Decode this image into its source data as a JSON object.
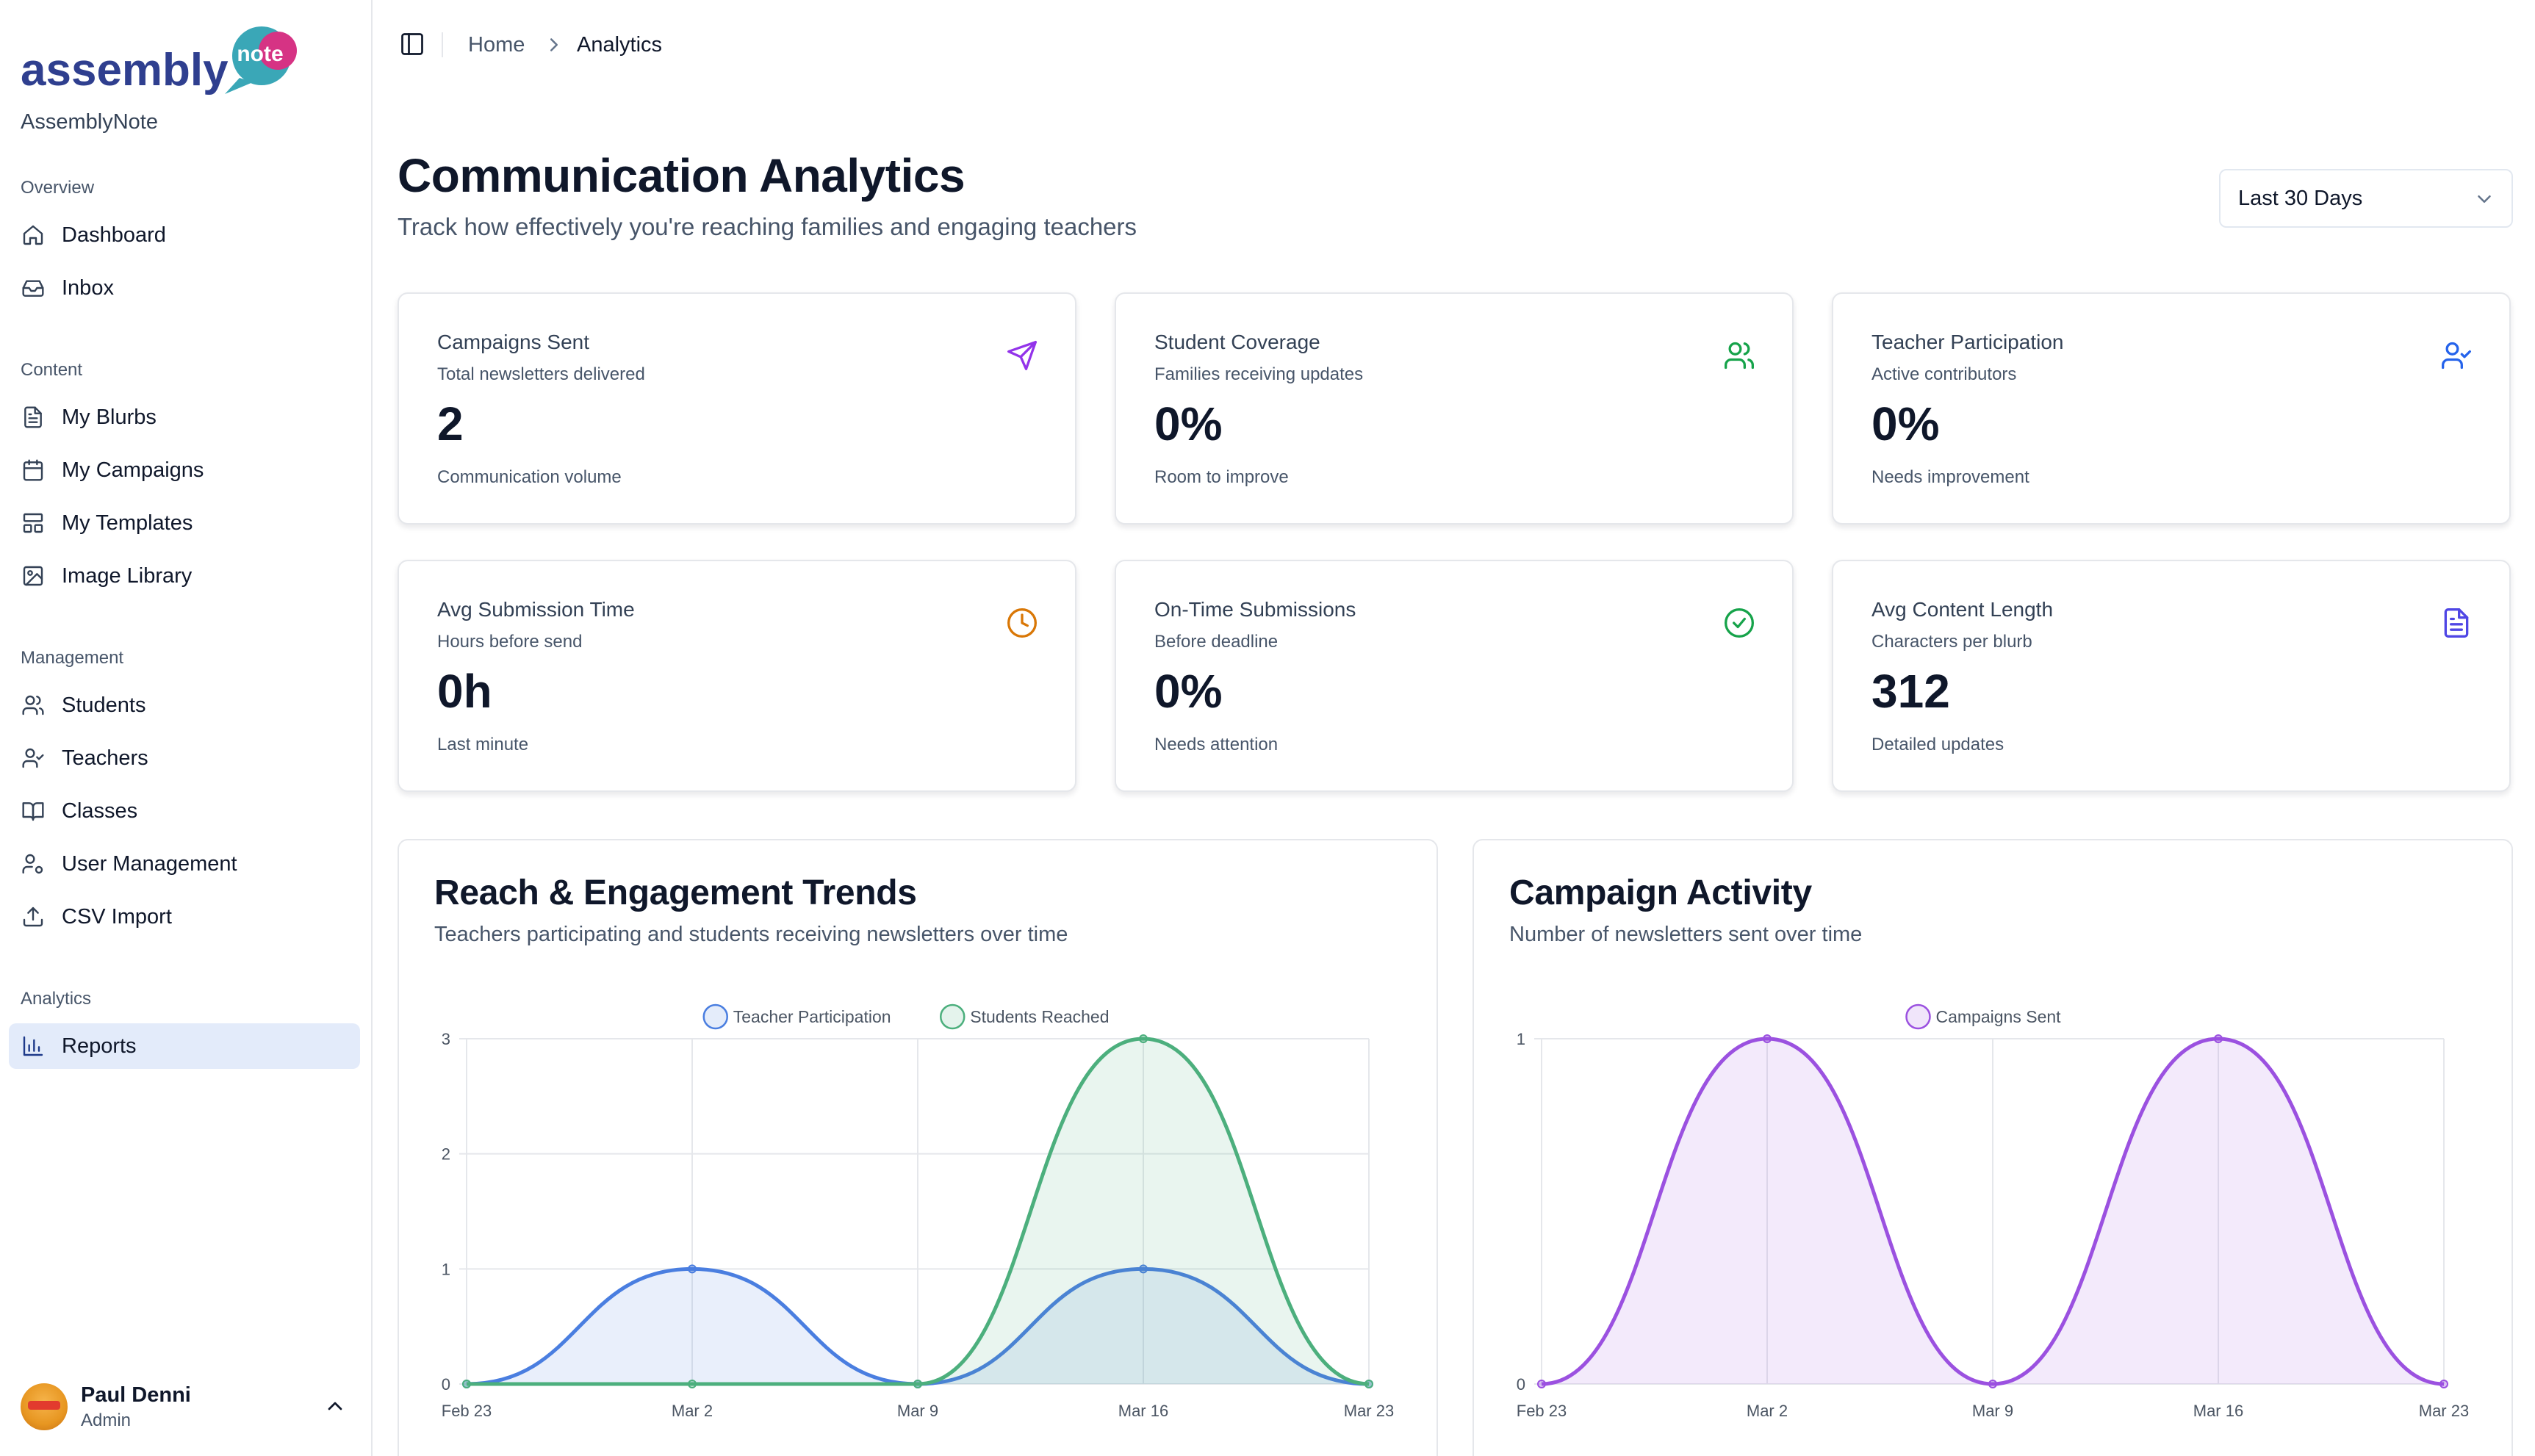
{
  "app": {
    "logo_text_main": "assembly",
    "logo_text_bubble": "note",
    "name": "AssemblyNote"
  },
  "sidebar": {
    "groups": [
      {
        "label": "Overview",
        "items": [
          {
            "label": "Dashboard",
            "icon": "home-icon"
          },
          {
            "label": "Inbox",
            "icon": "inbox-icon"
          }
        ]
      },
      {
        "label": "Content",
        "items": [
          {
            "label": "My Blurbs",
            "icon": "document-icon"
          },
          {
            "label": "My Campaigns",
            "icon": "calendar-icon"
          },
          {
            "label": "My Templates",
            "icon": "layout-icon"
          },
          {
            "label": "Image Library",
            "icon": "image-icon"
          }
        ]
      },
      {
        "label": "Management",
        "items": [
          {
            "label": "Students",
            "icon": "users-icon"
          },
          {
            "label": "Teachers",
            "icon": "user-check-icon"
          },
          {
            "label": "Classes",
            "icon": "book-open-icon"
          },
          {
            "label": "User Management",
            "icon": "user-cog-icon"
          },
          {
            "label": "CSV Import",
            "icon": "upload-icon"
          }
        ]
      },
      {
        "label": "Analytics",
        "items": [
          {
            "label": "Reports",
            "icon": "bar-chart-icon",
            "active": true
          }
        ]
      }
    ],
    "user": {
      "name": "Paul Denni",
      "role": "Admin"
    }
  },
  "breadcrumb": {
    "home": "Home",
    "current": "Analytics"
  },
  "header": {
    "title": "Communication Analytics",
    "subtitle": "Track how effectively you're reaching families and engaging teachers",
    "range_selected": "Last 30 Days"
  },
  "stats": [
    {
      "title": "Campaigns Sent",
      "subtitle": "Total newsletters delivered",
      "value": "2",
      "note": "Communication volume",
      "icon": "send-icon",
      "color": "#9333ea"
    },
    {
      "title": "Student Coverage",
      "subtitle": "Families receiving updates",
      "value": "0%",
      "note": "Room to improve",
      "icon": "users-icon",
      "color": "#16a34a"
    },
    {
      "title": "Teacher Participation",
      "subtitle": "Active contributors",
      "value": "0%",
      "note": "Needs improvement",
      "icon": "user-check-icon",
      "color": "#2563eb"
    },
    {
      "title": "Avg Submission Time",
      "subtitle": "Hours before send",
      "value": "0h",
      "note": "Last minute",
      "icon": "clock-icon",
      "color": "#d97706"
    },
    {
      "title": "On-Time Submissions",
      "subtitle": "Before deadline",
      "value": "0%",
      "note": "Needs attention",
      "icon": "check-circle-icon",
      "color": "#16a34a"
    },
    {
      "title": "Avg Content Length",
      "subtitle": "Characters per blurb",
      "value": "312",
      "note": "Detailed updates",
      "icon": "file-text-icon",
      "color": "#4f46e5"
    }
  ],
  "chart_data": [
    {
      "type": "area",
      "title": "Reach & Engagement Trends",
      "subtitle": "Teachers participating and students receiving newsletters over time",
      "x": [
        "Feb 23",
        "Mar 2",
        "Mar 9",
        "Mar 16",
        "Mar 23"
      ],
      "ylim": [
        0,
        3
      ],
      "yticks": [
        0,
        1,
        2,
        3
      ],
      "grid": true,
      "legend": "top-center",
      "series": [
        {
          "name": "Teacher Participation",
          "values": [
            0,
            1,
            0,
            1,
            0
          ],
          "color": "#4a7ee0"
        },
        {
          "name": "Students Reached",
          "values": [
            0,
            0,
            0,
            3,
            0
          ],
          "color": "#4caf7d"
        }
      ]
    },
    {
      "type": "area",
      "title": "Campaign Activity",
      "subtitle": "Number of newsletters sent over time",
      "x": [
        "Feb 23",
        "Mar 2",
        "Mar 9",
        "Mar 16",
        "Mar 23"
      ],
      "ylim": [
        0,
        1
      ],
      "yticks": [
        0,
        1
      ],
      "grid": true,
      "legend": "top-center",
      "series": [
        {
          "name": "Campaigns Sent",
          "values": [
            0,
            1,
            0,
            1,
            0
          ],
          "color": "#9b51e0"
        }
      ]
    }
  ]
}
